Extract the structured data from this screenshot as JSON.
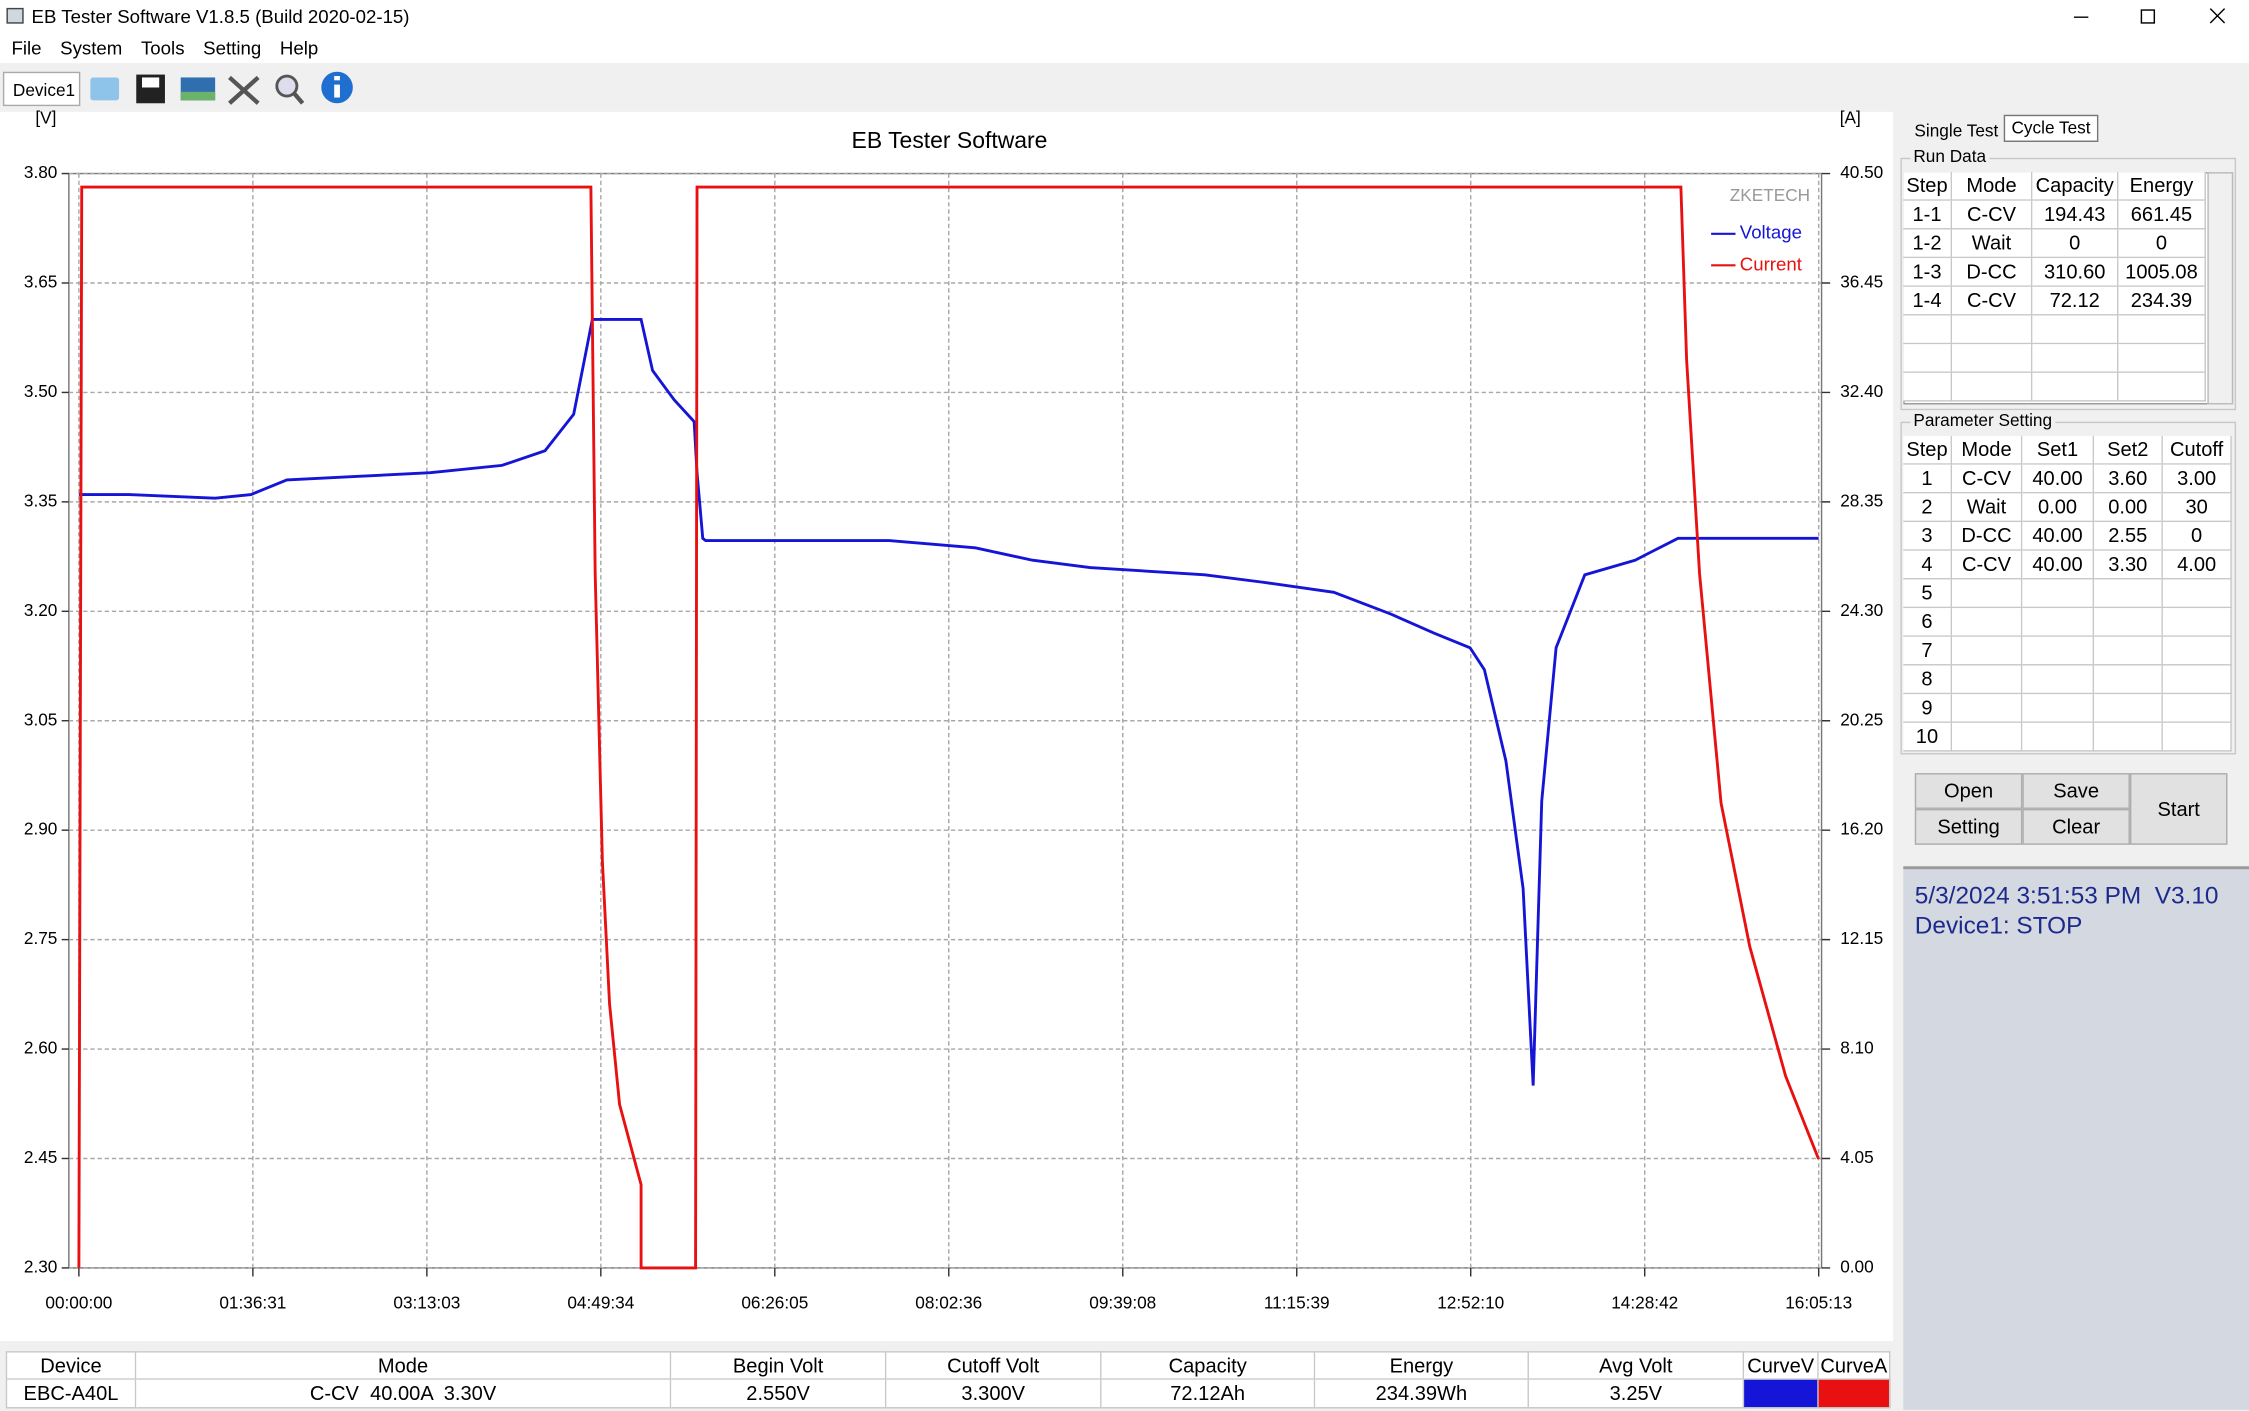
{
  "window": {
    "title": "EB Tester Software V1.8.5 (Build 2020-02-15)"
  },
  "menu": [
    "File",
    "System",
    "Tools",
    "Setting",
    "Help"
  ],
  "toolbar": {
    "device_tab": "Device1"
  },
  "chart_data": {
    "type": "line",
    "title": "EB Tester Software",
    "y_label": "[V]",
    "y2_label": "[A]",
    "watermark": "ZKETECH",
    "grid": true,
    "legend": "upper right",
    "xlim": [
      0,
      57913
    ],
    "xticks": [
      {
        "value": 0,
        "label": "00:00:00"
      },
      {
        "value": 5791,
        "label": "01:36:31"
      },
      {
        "value": 11583,
        "label": "03:13:03"
      },
      {
        "value": 17374,
        "label": "04:49:34"
      },
      {
        "value": 23165,
        "label": "06:26:05"
      },
      {
        "value": 28956,
        "label": "08:02:36"
      },
      {
        "value": 34748,
        "label": "09:39:08"
      },
      {
        "value": 40539,
        "label": "11:15:39"
      },
      {
        "value": 46330,
        "label": "12:52:10"
      },
      {
        "value": 52122,
        "label": "14:28:42"
      },
      {
        "value": 57913,
        "label": "16:05:13"
      }
    ],
    "ylim": [
      2.3,
      3.8
    ],
    "yticks": [
      {
        "value": 2.3,
        "label": "2.30"
      },
      {
        "value": 2.45,
        "label": "2.45"
      },
      {
        "value": 2.6,
        "label": "2.60"
      },
      {
        "value": 2.75,
        "label": "2.75"
      },
      {
        "value": 2.9,
        "label": "2.90"
      },
      {
        "value": 3.05,
        "label": "3.05"
      },
      {
        "value": 3.2,
        "label": "3.20"
      },
      {
        "value": 3.35,
        "label": "3.35"
      },
      {
        "value": 3.5,
        "label": "3.50"
      },
      {
        "value": 3.65,
        "label": "3.65"
      },
      {
        "value": 3.8,
        "label": "3.80"
      }
    ],
    "y2lim": [
      0,
      40.5
    ],
    "y2ticks": [
      {
        "value": 0,
        "label": "0.00"
      },
      {
        "value": 4.05,
        "label": "4.05"
      },
      {
        "value": 8.1,
        "label": "8.10"
      },
      {
        "value": 12.15,
        "label": "12.15"
      },
      {
        "value": 16.2,
        "label": "16.20"
      },
      {
        "value": 20.25,
        "label": "20.25"
      },
      {
        "value": 24.3,
        "label": "24.30"
      },
      {
        "value": 28.35,
        "label": "28.35"
      },
      {
        "value": 32.4,
        "label": "32.40"
      },
      {
        "value": 36.45,
        "label": "36.45"
      },
      {
        "value": 40.5,
        "label": "40.50"
      }
    ],
    "series": [
      {
        "name": "Voltage",
        "color": "#1515d8",
        "x": [
          0,
          1671,
          4535,
          5729,
          6922,
          9309,
          11696,
          14083,
          15516,
          16470,
          16948,
          17091,
          18714,
          19096,
          19812,
          20480,
          20576,
          20767,
          20862,
          26973,
          29838,
          31747,
          33657,
          37476,
          39386,
          41773,
          43682,
          45114,
          46308,
          46785,
          47501,
          48074,
          48408,
          48694,
          49172,
          50127,
          51798,
          53230,
          57909
        ],
        "values": [
          3.36,
          3.36,
          3.355,
          3.36,
          3.38,
          3.385,
          3.39,
          3.4,
          3.42,
          3.47,
          3.57,
          3.6,
          3.6,
          3.53,
          3.49,
          3.46,
          3.39,
          3.3,
          3.297,
          3.297,
          3.287,
          3.27,
          3.26,
          3.25,
          3.24,
          3.226,
          3.196,
          3.17,
          3.15,
          3.12,
          2.995,
          2.82,
          2.55,
          2.94,
          3.15,
          3.25,
          3.27,
          3.3,
          3.3
        ]
      },
      {
        "name": "Current",
        "color": "#e81010",
        "axis": "y2",
        "x": [
          0,
          95,
          17043,
          17186,
          17425,
          17664,
          17998,
          18714,
          18714,
          20528,
          20576,
          53326,
          53517,
          53947,
          54663,
          55617,
          56811,
          57909
        ],
        "values": [
          0,
          40,
          40,
          25.69,
          15.07,
          9.77,
          6.05,
          3.08,
          0,
          0,
          40,
          40,
          33.6,
          25.7,
          17.2,
          11.9,
          7.1,
          4.03
        ]
      }
    ]
  },
  "side": {
    "tabs": [
      "Single Test",
      "Cycle Test"
    ],
    "run_data": {
      "title": "Run Data",
      "columns": [
        "Step",
        "Mode",
        "Capacity",
        "Energy"
      ],
      "rows": [
        [
          "1-1",
          "C-CV",
          "194.43",
          "661.45"
        ],
        [
          "1-2",
          "Wait",
          "0",
          "0"
        ],
        [
          "1-3",
          "D-CC",
          "310.60",
          "1005.08"
        ],
        [
          "1-4",
          "C-CV",
          "72.12",
          "234.39"
        ]
      ]
    },
    "parameter_setting": {
      "title": "Parameter Setting",
      "columns": [
        "Step",
        "Mode",
        "Set1",
        "Set2",
        "Cutoff"
      ],
      "rows": [
        [
          "1",
          "C-CV",
          "40.00",
          "3.60",
          "3.00"
        ],
        [
          "2",
          "Wait",
          "0.00",
          "0.00",
          "30"
        ],
        [
          "3",
          "D-CC",
          "40.00",
          "2.55",
          "0"
        ],
        [
          "4",
          "C-CV",
          "40.00",
          "3.30",
          "4.00"
        ],
        [
          "5"
        ],
        [
          "6"
        ],
        [
          "7"
        ],
        [
          "8"
        ],
        [
          "9"
        ],
        [
          "10"
        ]
      ]
    },
    "buttons": {
      "open": "Open",
      "save": "Save",
      "setting": "Setting",
      "clear": "Clear",
      "start": "Start"
    },
    "status": {
      "line1": "5/3/2024 3:51:53 PM  V3.10",
      "line2": "Device1: STOP"
    }
  },
  "bottom": {
    "columns": [
      "Device",
      "Mode",
      "Begin Volt",
      "Cutoff Volt",
      "Capacity",
      "Energy",
      "Avg Volt",
      "CurveV",
      "CurveA"
    ],
    "row": [
      "EBC-A40L",
      "C-CV  40.00A  3.30V",
      "2.550V",
      "3.300V",
      "72.12Ah",
      "234.39Wh",
      "3.25V"
    ]
  }
}
